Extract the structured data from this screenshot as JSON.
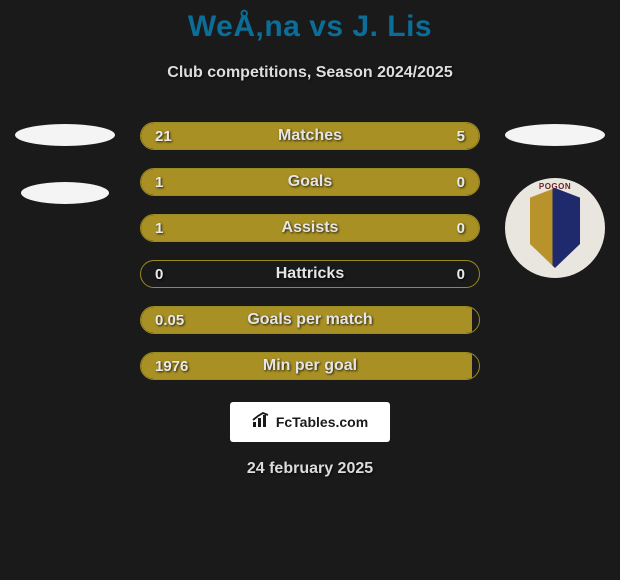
{
  "header": {
    "title": "WeÅ‚na vs J. Lis",
    "subtitle": "Club competitions, Season 2024/2025"
  },
  "colors": {
    "bar_left": "#a89024",
    "bar_right": "#a89024",
    "bar_border": "#9a8a1f",
    "background": "#1a1a1a",
    "title_color": "#0b6e99",
    "text_color": "#e5e5e5"
  },
  "bars": [
    {
      "label": "Matches",
      "left_val": "21",
      "right_val": "5",
      "left_pct": 80,
      "right_pct": 20
    },
    {
      "label": "Goals",
      "left_val": "1",
      "right_val": "0",
      "left_pct": 98,
      "right_pct": 2
    },
    {
      "label": "Assists",
      "left_val": "1",
      "right_val": "0",
      "left_pct": 98,
      "right_pct": 2
    },
    {
      "label": "Hattricks",
      "left_val": "0",
      "right_val": "0",
      "left_pct": 0,
      "right_pct": 0
    },
    {
      "label": "Goals per match",
      "left_val": "0.05",
      "right_val": "",
      "left_pct": 98,
      "right_pct": 0
    },
    {
      "label": "Min per goal",
      "left_val": "1976",
      "right_val": "",
      "left_pct": 98,
      "right_pct": 0
    }
  ],
  "branding": {
    "site": "FcTables.com"
  },
  "footer": {
    "date": "24 february 2025"
  },
  "badge": {
    "text": "POGON"
  }
}
